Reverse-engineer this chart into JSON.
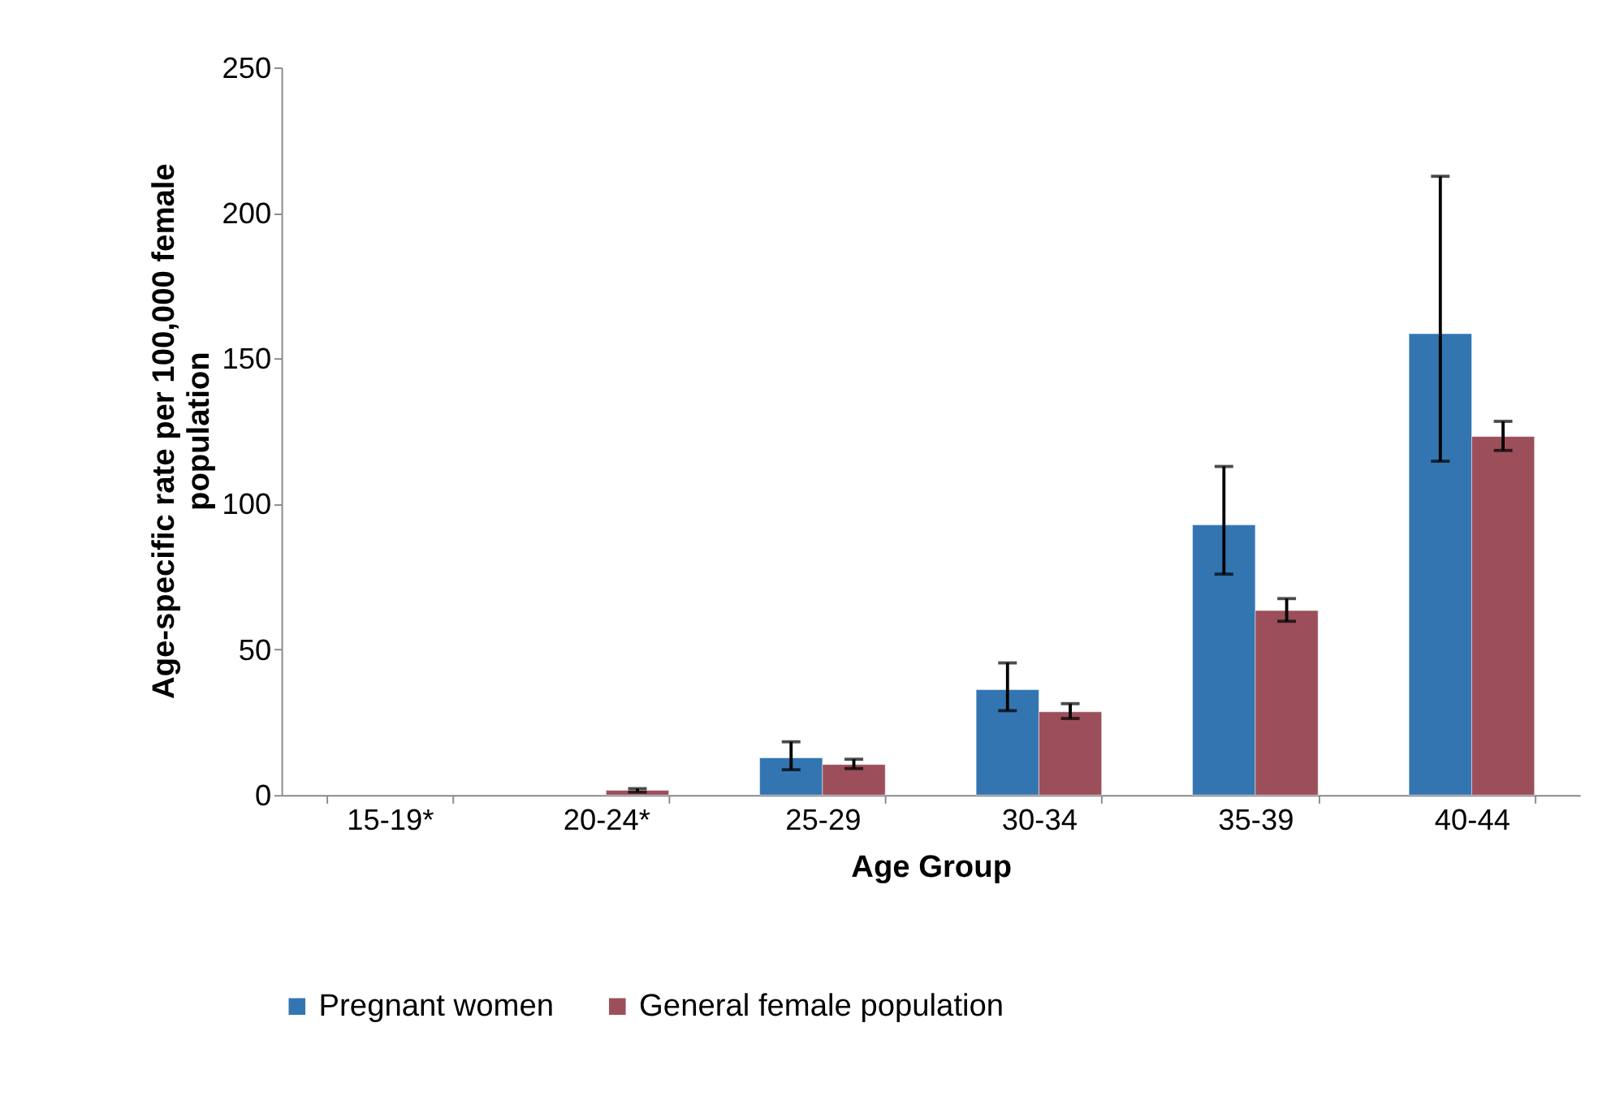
{
  "chart_data": {
    "type": "bar",
    "xlabel": "Age Group",
    "ylabel": "Age-specific rate per  100,000 female population",
    "categories": [
      "15-19*",
      "20-24*",
      "25-29",
      "30-34",
      "35-39",
      "40-44"
    ],
    "series": [
      {
        "name": "Pregnant women",
        "color": "#3375b1",
        "values": [
          null,
          null,
          12.8,
          36.2,
          92.8,
          158.5
        ],
        "errors": [
          null,
          null,
          [
            8.7,
            18.3
          ],
          [
            29,
            45.4
          ],
          [
            75.9,
            112.9
          ],
          [
            114.7,
            212.6
          ]
        ]
      },
      {
        "name": "General female population",
        "color": "#9c4f5b",
        "values": [
          null,
          1.6,
          10.5,
          28.6,
          63.4,
          123.2
        ],
        "errors": [
          null,
          [
            1,
            2.2
          ],
          [
            9.1,
            12.3
          ],
          [
            26.3,
            31.4
          ],
          [
            59.7,
            67.5
          ],
          [
            118.4,
            128.4
          ]
        ]
      }
    ],
    "ylim": [
      0,
      250
    ],
    "yticks": [
      0,
      50,
      100,
      150,
      200,
      250
    ],
    "grid": false,
    "legend": "bottom"
  }
}
